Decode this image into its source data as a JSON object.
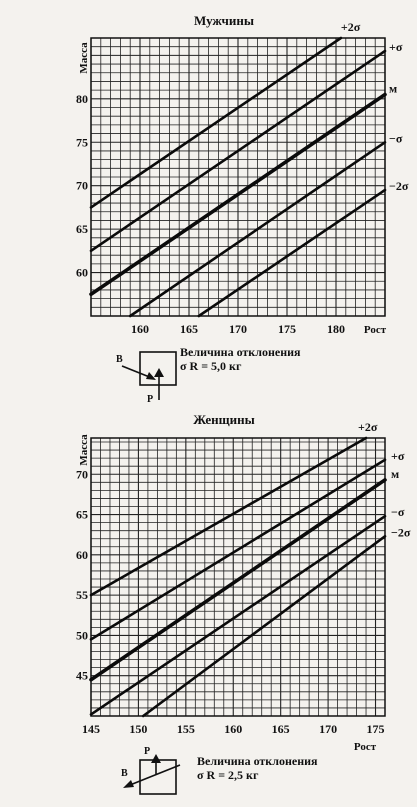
{
  "charts": [
    {
      "title": "Мужчины",
      "ylabel": "Масса",
      "xlabel": "Рост",
      "deviation": "Величина отклонения",
      "sigma_text": "σ R = 5,0 кг",
      "arrow_labels": [
        "В",
        "Р"
      ]
    },
    {
      "title": "Женщины",
      "ylabel": "Масса",
      "xlabel": "Рост",
      "deviation": "Величина отклонения",
      "sigma_text": "σ R = 2,5 кг",
      "arrow_labels": [
        "Р",
        "В"
      ]
    }
  ],
  "chart_data": [
    {
      "type": "line",
      "title": "Мужчины",
      "xlabel": "Рост",
      "ylabel": "Масса",
      "xlim": [
        155,
        185
      ],
      "ylim": [
        55,
        87
      ],
      "xticks": [
        160,
        165,
        170,
        175,
        180
      ],
      "yticks": [
        60,
        65,
        70,
        75,
        80
      ],
      "grid": true,
      "series": [
        {
          "name": "+2σ",
          "x": [
            155,
            180.5
          ],
          "y": [
            67.5,
            87
          ]
        },
        {
          "name": "+σ",
          "x": [
            155,
            185
          ],
          "y": [
            62.5,
            85.5
          ]
        },
        {
          "name": "м",
          "x": [
            155,
            185
          ],
          "y": [
            57.5,
            80.5
          ]
        },
        {
          "name": "−σ",
          "x": [
            159,
            185
          ],
          "y": [
            55,
            75
          ]
        },
        {
          "name": "−2σ",
          "x": [
            166,
            185
          ],
          "y": [
            55,
            69.5
          ]
        }
      ]
    },
    {
      "type": "line",
      "title": "Женщины",
      "xlabel": "Рост",
      "ylabel": "Масса",
      "xlim": [
        145,
        176
      ],
      "ylim": [
        40,
        74.5
      ],
      "xticks": [
        145,
        150,
        155,
        160,
        165,
        170,
        175
      ],
      "yticks": [
        45,
        50,
        55,
        60,
        65,
        70
      ],
      "grid": true,
      "series": [
        {
          "name": "+2σ",
          "x": [
            145,
            174
          ],
          "y": [
            55,
            74.5
          ]
        },
        {
          "name": "+σ",
          "x": [
            145,
            176
          ],
          "y": [
            49.5,
            71.8
          ]
        },
        {
          "name": "м",
          "x": [
            145,
            176
          ],
          "y": [
            44.5,
            69.3
          ]
        },
        {
          "name": "−σ",
          "x": [
            145,
            176
          ],
          "y": [
            40.2,
            64.8
          ]
        },
        {
          "name": "−2σ",
          "x": [
            150.5,
            176
          ],
          "y": [
            40,
            62.3
          ]
        }
      ]
    }
  ]
}
